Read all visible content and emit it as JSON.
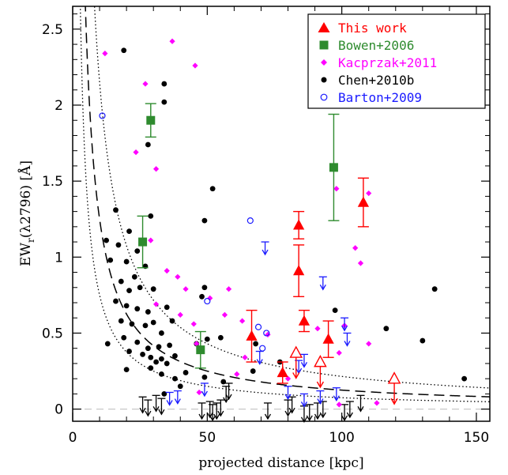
{
  "chart_data": {
    "type": "scatter",
    "xlabel": "projected distance [kpc]",
    "ylabel_main": "EW",
    "ylabel_sub": "r",
    "ylabel_rest": "(λ2796) [Å]",
    "xlim": [
      0,
      155
    ],
    "ylim": [
      -0.08,
      2.65
    ],
    "xticks": [
      0,
      50,
      100,
      150
    ],
    "xtick_labels": [
      "0",
      "50",
      "100",
      "150"
    ],
    "yticks": [
      0,
      0.5,
      1,
      1.5,
      2,
      2.5
    ],
    "ytick_labels": [
      "0",
      "0.5",
      "1",
      "1.5",
      "2",
      "2.5"
    ],
    "legend_position": "top-right",
    "colors": {
      "this_work": "#ff0000",
      "bowen": "#2e8b2e",
      "kacprzak": "#ff00ff",
      "chen": "#000000",
      "barton": "#1a1aff"
    },
    "legend": [
      {
        "key": "this_work",
        "label": "This work",
        "marker": "filled-triangle",
        "color": "#ff0000"
      },
      {
        "key": "bowen",
        "label": "Bowen+2006",
        "marker": "filled-square",
        "color": "#2e8b2e"
      },
      {
        "key": "kacprzak",
        "label": "Kacprzak+2011",
        "marker": "filled-diamond",
        "color": "#ff00ff"
      },
      {
        "key": "chen",
        "label": "Chen+2010b",
        "marker": "filled-circle",
        "color": "#000000"
      },
      {
        "key": "barton",
        "label": "Barton+2009",
        "marker": "open-circle",
        "color": "#1a1aff"
      }
    ],
    "curves": [
      {
        "style": "dashed",
        "a": 12.5
      },
      {
        "style": "dotted",
        "a": 7.5
      },
      {
        "style": "dotted",
        "a": 21.5
      }
    ],
    "series": {
      "this_work": {
        "detections": [
          {
            "x": 66.5,
            "y": 0.48,
            "err": 0.17
          },
          {
            "x": 78,
            "y": 0.24,
            "err": 0.07
          },
          {
            "x": 84,
            "y": 1.21,
            "err": 0.09
          },
          {
            "x": 84,
            "y": 0.91,
            "err": 0.17
          },
          {
            "x": 86,
            "y": 0.58,
            "err": 0.07
          },
          {
            "x": 95,
            "y": 0.46,
            "err": 0.12
          },
          {
            "x": 108,
            "y": 1.36,
            "err": 0.16
          }
        ],
        "upper_limits": [
          {
            "x": 83,
            "y": 0.37
          },
          {
            "x": 92,
            "y": 0.31
          },
          {
            "x": 119.5,
            "y": 0.2
          }
        ]
      },
      "bowen": [
        {
          "x": 29,
          "y": 1.9,
          "err": 0.11
        },
        {
          "x": 26,
          "y": 1.1,
          "err": 0.17
        },
        {
          "x": 47.5,
          "y": 0.39,
          "err": 0.12
        },
        {
          "x": 97,
          "y": 1.59,
          "err": 0.35
        }
      ],
      "kacprzak": [
        {
          "x": 12,
          "y": 2.34
        },
        {
          "x": 27,
          "y": 2.14
        },
        {
          "x": 37,
          "y": 2.42
        },
        {
          "x": 45.5,
          "y": 2.26
        },
        {
          "x": 23.5,
          "y": 1.69
        },
        {
          "x": 31,
          "y": 1.58
        },
        {
          "x": 98,
          "y": 1.45
        },
        {
          "x": 110,
          "y": 1.42
        },
        {
          "x": 29,
          "y": 1.11
        },
        {
          "x": 35,
          "y": 0.91
        },
        {
          "x": 105,
          "y": 1.06
        },
        {
          "x": 107,
          "y": 0.96
        },
        {
          "x": 39,
          "y": 0.87
        },
        {
          "x": 42,
          "y": 0.79
        },
        {
          "x": 58,
          "y": 0.79
        },
        {
          "x": 51,
          "y": 0.73
        },
        {
          "x": 31,
          "y": 0.69
        },
        {
          "x": 40,
          "y": 0.62
        },
        {
          "x": 56.5,
          "y": 0.62
        },
        {
          "x": 63,
          "y": 0.58
        },
        {
          "x": 45,
          "y": 0.56
        },
        {
          "x": 72.5,
          "y": 0.49
        },
        {
          "x": 91,
          "y": 0.53
        },
        {
          "x": 46,
          "y": 0.43
        },
        {
          "x": 101,
          "y": 0.55
        },
        {
          "x": 110,
          "y": 0.43
        },
        {
          "x": 64,
          "y": 0.34
        },
        {
          "x": 99,
          "y": 0.37
        },
        {
          "x": 80,
          "y": 0.2
        },
        {
          "x": 47,
          "y": 0.11
        },
        {
          "x": 99,
          "y": 0.03
        },
        {
          "x": 113,
          "y": 0.04
        },
        {
          "x": 61,
          "y": 0.23
        }
      ],
      "chen": [
        {
          "x": 19,
          "y": 2.36
        },
        {
          "x": 34,
          "y": 2.14
        },
        {
          "x": 34,
          "y": 2.02
        },
        {
          "x": 28,
          "y": 1.74
        },
        {
          "x": 52,
          "y": 1.45
        },
        {
          "x": 16,
          "y": 1.31
        },
        {
          "x": 29,
          "y": 1.27
        },
        {
          "x": 49,
          "y": 1.24
        },
        {
          "x": 21,
          "y": 1.17
        },
        {
          "x": 12.5,
          "y": 1.11
        },
        {
          "x": 17,
          "y": 1.08
        },
        {
          "x": 24,
          "y": 1.04
        },
        {
          "x": 14,
          "y": 0.98
        },
        {
          "x": 20,
          "y": 0.97
        },
        {
          "x": 27,
          "y": 0.94
        },
        {
          "x": 23,
          "y": 0.87
        },
        {
          "x": 18,
          "y": 0.84
        },
        {
          "x": 21,
          "y": 0.78
        },
        {
          "x": 25,
          "y": 0.8
        },
        {
          "x": 30,
          "y": 0.79
        },
        {
          "x": 49,
          "y": 0.8
        },
        {
          "x": 16,
          "y": 0.71
        },
        {
          "x": 20,
          "y": 0.68
        },
        {
          "x": 24,
          "y": 0.66
        },
        {
          "x": 28,
          "y": 0.64
        },
        {
          "x": 35,
          "y": 0.67
        },
        {
          "x": 48,
          "y": 0.74
        },
        {
          "x": 18,
          "y": 0.58
        },
        {
          "x": 22,
          "y": 0.56
        },
        {
          "x": 27,
          "y": 0.55
        },
        {
          "x": 30,
          "y": 0.57
        },
        {
          "x": 33,
          "y": 0.5
        },
        {
          "x": 37,
          "y": 0.58
        },
        {
          "x": 19,
          "y": 0.47
        },
        {
          "x": 24,
          "y": 0.44
        },
        {
          "x": 28,
          "y": 0.4
        },
        {
          "x": 32,
          "y": 0.41
        },
        {
          "x": 36,
          "y": 0.42
        },
        {
          "x": 13,
          "y": 0.43
        },
        {
          "x": 21,
          "y": 0.38
        },
        {
          "x": 26,
          "y": 0.36
        },
        {
          "x": 29,
          "y": 0.34
        },
        {
          "x": 33,
          "y": 0.33
        },
        {
          "x": 31,
          "y": 0.31
        },
        {
          "x": 35,
          "y": 0.3
        },
        {
          "x": 38,
          "y": 0.35
        },
        {
          "x": 46,
          "y": 0.43
        },
        {
          "x": 50,
          "y": 0.46
        },
        {
          "x": 20,
          "y": 0.26
        },
        {
          "x": 29,
          "y": 0.27
        },
        {
          "x": 33,
          "y": 0.23
        },
        {
          "x": 38,
          "y": 0.2
        },
        {
          "x": 42,
          "y": 0.24
        },
        {
          "x": 56,
          "y": 0.18
        },
        {
          "x": 34,
          "y": 0.1
        },
        {
          "x": 49,
          "y": 0.21
        },
        {
          "x": 55,
          "y": 0.47
        },
        {
          "x": 68,
          "y": 0.43
        },
        {
          "x": 97.5,
          "y": 0.65
        },
        {
          "x": 116.5,
          "y": 0.53
        },
        {
          "x": 130,
          "y": 0.45
        },
        {
          "x": 134.5,
          "y": 0.79
        },
        {
          "x": 145.5,
          "y": 0.2
        },
        {
          "x": 67,
          "y": 0.25
        },
        {
          "x": 77,
          "y": 0.31
        },
        {
          "x": 40,
          "y": 0.15
        }
      ],
      "chen_upper_limits": [
        {
          "x": 26,
          "y": 0.08
        },
        {
          "x": 28,
          "y": 0.06
        },
        {
          "x": 31,
          "y": 0.09
        },
        {
          "x": 33,
          "y": 0.07
        },
        {
          "x": 48,
          "y": 0.04
        },
        {
          "x": 51,
          "y": 0.05
        },
        {
          "x": 52,
          "y": 0.03
        },
        {
          "x": 53.5,
          "y": 0.04
        },
        {
          "x": 55,
          "y": 0.06
        },
        {
          "x": 57,
          "y": 0.15
        },
        {
          "x": 58,
          "y": 0.17
        },
        {
          "x": 72.5,
          "y": 0.04
        },
        {
          "x": 80,
          "y": 0.06
        },
        {
          "x": 81.5,
          "y": 0.08
        },
        {
          "x": 86,
          "y": 0.02
        },
        {
          "x": 88,
          "y": 0.03
        },
        {
          "x": 91,
          "y": 0.04
        },
        {
          "x": 93,
          "y": 0.05
        },
        {
          "x": 101,
          "y": 0.03
        },
        {
          "x": 103,
          "y": 0.05
        },
        {
          "x": 107,
          "y": 0.09
        }
      ],
      "barton": [
        {
          "x": 11,
          "y": 1.93
        },
        {
          "x": 66,
          "y": 1.24
        },
        {
          "x": 50,
          "y": 0.71
        },
        {
          "x": 69,
          "y": 0.54
        },
        {
          "x": 72,
          "y": 0.5
        },
        {
          "x": 70.5,
          "y": 0.4
        }
      ],
      "barton_upper_limits": [
        {
          "x": 71.5,
          "y": 1.1
        },
        {
          "x": 93,
          "y": 0.87
        },
        {
          "x": 101,
          "y": 0.6
        },
        {
          "x": 102,
          "y": 0.5
        },
        {
          "x": 69.5,
          "y": 0.38
        },
        {
          "x": 86,
          "y": 0.36
        },
        {
          "x": 84,
          "y": 0.32
        },
        {
          "x": 49,
          "y": 0.17
        },
        {
          "x": 39,
          "y": 0.12
        },
        {
          "x": 80,
          "y": 0.15
        },
        {
          "x": 92,
          "y": 0.12
        },
        {
          "x": 98,
          "y": 0.14
        },
        {
          "x": 36,
          "y": 0.11
        },
        {
          "x": 86,
          "y": 0.1
        }
      ]
    }
  }
}
